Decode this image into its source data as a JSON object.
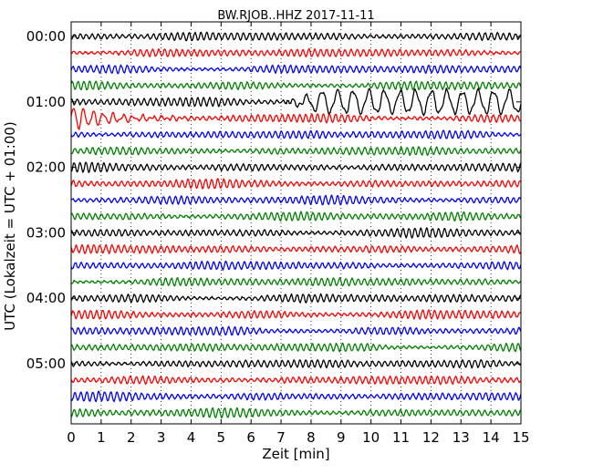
{
  "chart_data": {
    "type": "line",
    "title": "BW.RJOB..HHZ 2017-11-11",
    "xlabel": "Zeit  [min]",
    "ylabel": "UTC (Lokalzeit = UTC + 01:00)",
    "xlim": [
      0,
      15
    ],
    "x_ticks": [
      0,
      1,
      2,
      3,
      4,
      5,
      6,
      7,
      8,
      9,
      10,
      11,
      12,
      13,
      14,
      15
    ],
    "y_ticks": [
      "00:00",
      "01:00",
      "02:00",
      "03:00",
      "04:00",
      "05:00"
    ],
    "grid": "vertical dotted",
    "traces_per_hour": 4,
    "minutes_per_trace": 15,
    "color_cycle": [
      "#000000",
      "#ff0000",
      "#0000ff",
      "#008000"
    ],
    "series": [
      {
        "start": "00:00"
      },
      {
        "start": "00:15"
      },
      {
        "start": "00:30"
      },
      {
        "start": "00:45"
      },
      {
        "start": "01:00",
        "event": "long-period waves begin at ~7.2 min"
      },
      {
        "start": "01:15",
        "event": "decaying oscillation, 0–5 min"
      },
      {
        "start": "01:30"
      },
      {
        "start": "01:45"
      },
      {
        "start": "02:00"
      },
      {
        "start": "02:15"
      },
      {
        "start": "02:30"
      },
      {
        "start": "02:45"
      },
      {
        "start": "03:00"
      },
      {
        "start": "03:15"
      },
      {
        "start": "03:30"
      },
      {
        "start": "03:45"
      },
      {
        "start": "04:00"
      },
      {
        "start": "04:15"
      },
      {
        "start": "04:30"
      },
      {
        "start": "04:45"
      },
      {
        "start": "05:00"
      },
      {
        "start": "05:15"
      },
      {
        "start": "05:30"
      },
      {
        "start": "05:45"
      }
    ]
  }
}
